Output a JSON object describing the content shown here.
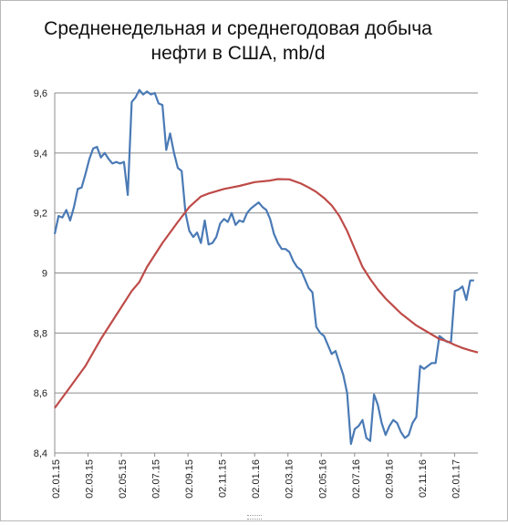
{
  "chart_data": {
    "type": "line",
    "title_line1": "Средненедельная и среднегодовая  добыча",
    "title_line2": "нефти в США, mb/d",
    "xlabel": "",
    "ylabel": "",
    "ylim": [
      8.4,
      9.6
    ],
    "yticks": [
      {
        "value": 8.4,
        "label": "8,4"
      },
      {
        "value": 8.6,
        "label": "8,6"
      },
      {
        "value": 8.8,
        "label": "8,8"
      },
      {
        "value": 9.0,
        "label": "9"
      },
      {
        "value": 9.2,
        "label": "9,2"
      },
      {
        "value": 9.4,
        "label": "9,4"
      },
      {
        "value": 9.6,
        "label": "9,6"
      }
    ],
    "x_tick_labels": [
      "02.01.15",
      "02.03.15",
      "02.05.15",
      "02.07.15",
      "02.09.15",
      "02.11.15",
      "02.01.16",
      "02.03.16",
      "02.05.16",
      "02.07.16",
      "02.09.16",
      "02.11.16",
      "02.01.17"
    ],
    "x_range_weeks": [
      0,
      110
    ],
    "grid": "horizontal",
    "legend": "none",
    "series": [
      {
        "color": "#4a7ab5",
        "points": [
          [
            0,
            9.13
          ],
          [
            1,
            9.19
          ],
          [
            2,
            9.185
          ],
          [
            3,
            9.21
          ],
          [
            4,
            9.175
          ],
          [
            5,
            9.22
          ],
          [
            6,
            9.28
          ],
          [
            7,
            9.285
          ],
          [
            8,
            9.33
          ],
          [
            9,
            9.38
          ],
          [
            10,
            9.415
          ],
          [
            11,
            9.42
          ],
          [
            12,
            9.385
          ],
          [
            13,
            9.4
          ],
          [
            14,
            9.38
          ],
          [
            15,
            9.365
          ],
          [
            16,
            9.37
          ],
          [
            17,
            9.365
          ],
          [
            18,
            9.37
          ],
          [
            19,
            9.26
          ],
          [
            20,
            9.57
          ],
          [
            21,
            9.585
          ],
          [
            22,
            9.61
          ],
          [
            23,
            9.595
          ],
          [
            24,
            9.605
          ],
          [
            25,
            9.595
          ],
          [
            26,
            9.6
          ],
          [
            27,
            9.565
          ],
          [
            28,
            9.56
          ],
          [
            29,
            9.41
          ],
          [
            30,
            9.465
          ],
          [
            31,
            9.4
          ],
          [
            32,
            9.35
          ],
          [
            33,
            9.34
          ],
          [
            34,
            9.2
          ],
          [
            35,
            9.14
          ],
          [
            36,
            9.12
          ],
          [
            37,
            9.135
          ],
          [
            38,
            9.1
          ],
          [
            39,
            9.175
          ],
          [
            40,
            9.095
          ],
          [
            41,
            9.1
          ],
          [
            42,
            9.12
          ],
          [
            43,
            9.165
          ],
          [
            44,
            9.18
          ],
          [
            45,
            9.17
          ],
          [
            46,
            9.2
          ],
          [
            47,
            9.16
          ],
          [
            48,
            9.175
          ],
          [
            49,
            9.17
          ],
          [
            50,
            9.2
          ],
          [
            51,
            9.215
          ],
          [
            52,
            9.225
          ],
          [
            53,
            9.235
          ],
          [
            54,
            9.22
          ],
          [
            55,
            9.21
          ],
          [
            56,
            9.18
          ],
          [
            57,
            9.13
          ],
          [
            58,
            9.1
          ],
          [
            59,
            9.08
          ],
          [
            60,
            9.08
          ],
          [
            61,
            9.07
          ],
          [
            62,
            9.04
          ],
          [
            63,
            9.02
          ],
          [
            64,
            9.01
          ],
          [
            65,
            8.98
          ],
          [
            66,
            8.95
          ],
          [
            67,
            8.935
          ],
          [
            68,
            8.82
          ],
          [
            69,
            8.8
          ],
          [
            70,
            8.79
          ],
          [
            71,
            8.76
          ],
          [
            72,
            8.73
          ],
          [
            73,
            8.74
          ],
          [
            74,
            8.7
          ],
          [
            75,
            8.66
          ],
          [
            76,
            8.6
          ],
          [
            77,
            8.43
          ],
          [
            78,
            8.48
          ],
          [
            79,
            8.49
          ],
          [
            80,
            8.51
          ],
          [
            81,
            8.45
          ],
          [
            82,
            8.44
          ],
          [
            83,
            8.595
          ],
          [
            84,
            8.56
          ],
          [
            85,
            8.5
          ],
          [
            86,
            8.46
          ],
          [
            87,
            8.49
          ],
          [
            88,
            8.51
          ],
          [
            89,
            8.5
          ],
          [
            90,
            8.47
          ],
          [
            91,
            8.45
          ],
          [
            92,
            8.46
          ],
          [
            93,
            8.5
          ],
          [
            94,
            8.52
          ],
          [
            95,
            8.69
          ],
          [
            96,
            8.68
          ],
          [
            97,
            8.69
          ],
          [
            98,
            8.7
          ],
          [
            99,
            8.7
          ],
          [
            100,
            8.79
          ],
          [
            101,
            8.78
          ],
          [
            102,
            8.77
          ],
          [
            103,
            8.77
          ],
          [
            104,
            8.94
          ],
          [
            105,
            8.945
          ],
          [
            106,
            8.955
          ],
          [
            107,
            8.91
          ],
          [
            108,
            8.975
          ],
          [
            109,
            8.975
          ]
        ]
      },
      {
        "color": "#be4b48",
        "points": [
          [
            0,
            8.55
          ],
          [
            4,
            8.62
          ],
          [
            8,
            8.69
          ],
          [
            12,
            8.78
          ],
          [
            16,
            8.86
          ],
          [
            20,
            8.94
          ],
          [
            22,
            8.97
          ],
          [
            24,
            9.02
          ],
          [
            28,
            9.1
          ],
          [
            32,
            9.17
          ],
          [
            35,
            9.22
          ],
          [
            38,
            9.255
          ],
          [
            40,
            9.265
          ],
          [
            44,
            9.28
          ],
          [
            48,
            9.29
          ],
          [
            52,
            9.303
          ],
          [
            56,
            9.308
          ],
          [
            58,
            9.313
          ],
          [
            61,
            9.312
          ],
          [
            64,
            9.298
          ],
          [
            66,
            9.285
          ],
          [
            68,
            9.27
          ],
          [
            70,
            9.25
          ],
          [
            72,
            9.225
          ],
          [
            74,
            9.19
          ],
          [
            76,
            9.14
          ],
          [
            78,
            9.08
          ],
          [
            80,
            9.02
          ],
          [
            82,
            8.98
          ],
          [
            84,
            8.945
          ],
          [
            86,
            8.915
          ],
          [
            88,
            8.89
          ],
          [
            90,
            8.865
          ],
          [
            92,
            8.845
          ],
          [
            94,
            8.825
          ],
          [
            96,
            8.81
          ],
          [
            98,
            8.795
          ],
          [
            100,
            8.78
          ],
          [
            102,
            8.772
          ],
          [
            104,
            8.76
          ],
          [
            106,
            8.75
          ],
          [
            108,
            8.742
          ],
          [
            110,
            8.735
          ]
        ]
      }
    ]
  }
}
